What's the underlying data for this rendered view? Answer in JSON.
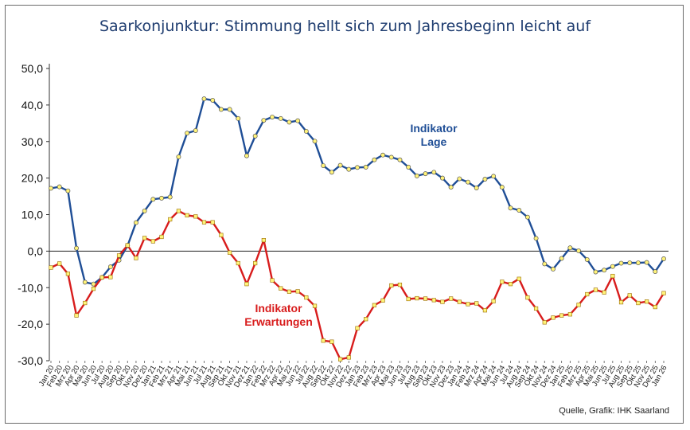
{
  "title": "Saarkonjunktur: Stimmung hellt sich zum Jahresbeginn leicht auf",
  "source": "Quelle, Grafik: IHK Saarland",
  "annotations": {
    "lage": [
      "Indikator",
      "Lage"
    ],
    "erwartungen": [
      "Indikator",
      "Erwartungen"
    ]
  },
  "colors": {
    "lage": "#1f4e96",
    "erwartungen": "#d81c1c",
    "marker_fill": "#fff37a"
  },
  "chart_data": {
    "type": "line",
    "ylim": [
      -30,
      50
    ],
    "yticks": [
      "50,0",
      "40,0",
      "30,0",
      "20,0",
      "10,0",
      "0,0",
      "-10,0",
      "-20,0",
      "-30,0"
    ],
    "ytick_values": [
      50,
      40,
      30,
      20,
      10,
      0,
      -10,
      -20,
      -30
    ],
    "grid": false,
    "x": [
      "Jan 20",
      "Feb 20",
      "Mrz 20",
      "Apr 20",
      "Mai 20",
      "Jun 20",
      "Jul 20",
      "Aug 20",
      "Sep 20",
      "Okt 20",
      "Nov 20",
      "Dez 20",
      "Jan 21",
      "Feb 21",
      "Mrz 21",
      "Apr 21",
      "Mai 21",
      "Jun 21",
      "Jul 21",
      "Aug 21",
      "Sep 21",
      "Okt 21",
      "Nov 21",
      "Dez 21",
      "Jan 22",
      "Feb 22",
      "Mrz 22",
      "Apr 22",
      "Mai 22",
      "Jun 22",
      "Jul 22",
      "Aug 22",
      "Sep 22",
      "Okt 22",
      "Nov 22",
      "Dez 22",
      "Jan 23",
      "Feb 23",
      "Mrz 23",
      "Apr 23",
      "Mai 23",
      "Jun 23",
      "Jul 23",
      "Aug 23",
      "Sep 23",
      "Okt 23",
      "Nov 23",
      "Dez 23",
      "Jan 24",
      "Feb 24",
      "Mrz 24",
      "Apr 24",
      "Mai 24",
      "Jun 24",
      "Jul 24",
      "Aug 24",
      "Sep 24",
      "Okt 24",
      "Nov 24",
      "Dez 24",
      "Jan 25",
      "Feb 25",
      "Mrz 25",
      "Apr 25",
      "Mai 25",
      "Jun 25",
      "Jul 25",
      "Aug 25",
      "Sep 25",
      "Okt 25",
      "Nov 25",
      "Dez 25",
      "Jan 26"
    ],
    "series": [
      {
        "key": "lage",
        "values": [
          17.2,
          17.6,
          16.5,
          0.8,
          -8.5,
          -9.0,
          -7.2,
          -4.3,
          -2.5,
          1.5,
          7.8,
          11.0,
          14.2,
          14.5,
          14.8,
          25.8,
          32.3,
          33.0,
          41.7,
          41.3,
          38.8,
          38.8,
          36.3,
          26.1,
          31.5,
          35.8,
          36.7,
          36.3,
          35.3,
          35.7,
          32.8,
          30.1,
          23.4,
          21.6,
          23.5,
          22.4,
          22.9,
          23.0,
          25.0,
          26.3,
          25.7,
          25.0,
          23.0,
          20.6,
          21.2,
          21.6,
          20.0,
          17.5,
          19.8,
          18.9,
          17.3,
          19.7,
          20.5,
          17.5,
          11.8,
          11.2,
          9.3,
          3.5,
          -3.5,
          -4.9,
          -2.0,
          0.9,
          0.1,
          -2.3,
          -5.7,
          -5.2,
          -4.2,
          -3.3,
          -3.2,
          -3.2,
          -3.1,
          -5.6,
          -2.1
        ]
      },
      {
        "key": "erwartungen",
        "values": [
          -4.5,
          -3.4,
          -6.2,
          -17.6,
          -14.2,
          -10.3,
          -7.2,
          -7.1,
          -1.2,
          1.6,
          -1.9,
          3.6,
          2.7,
          3.9,
          8.7,
          11.0,
          9.8,
          9.5,
          7.9,
          7.9,
          4.4,
          -0.4,
          -3.3,
          -9.0,
          -3.3,
          3.0,
          -8.0,
          -10.2,
          -11.1,
          -11.0,
          -12.7,
          -15.0,
          -24.5,
          -24.8,
          -29.6,
          -29.1,
          -21.1,
          -18.6,
          -14.8,
          -13.5,
          -9.4,
          -9.2,
          -13.1,
          -12.9,
          -13.0,
          -13.4,
          -13.9,
          -13.0,
          -13.9,
          -14.5,
          -14.3,
          -16.2,
          -13.7,
          -8.4,
          -9.0,
          -7.6,
          -12.7,
          -15.7,
          -19.5,
          -18.2,
          -17.6,
          -17.3,
          -14.7,
          -11.8,
          -10.6,
          -11.3,
          -6.8,
          -14.0,
          -12.1,
          -14.2,
          -13.8,
          -15.3,
          -11.5
        ]
      }
    ]
  }
}
